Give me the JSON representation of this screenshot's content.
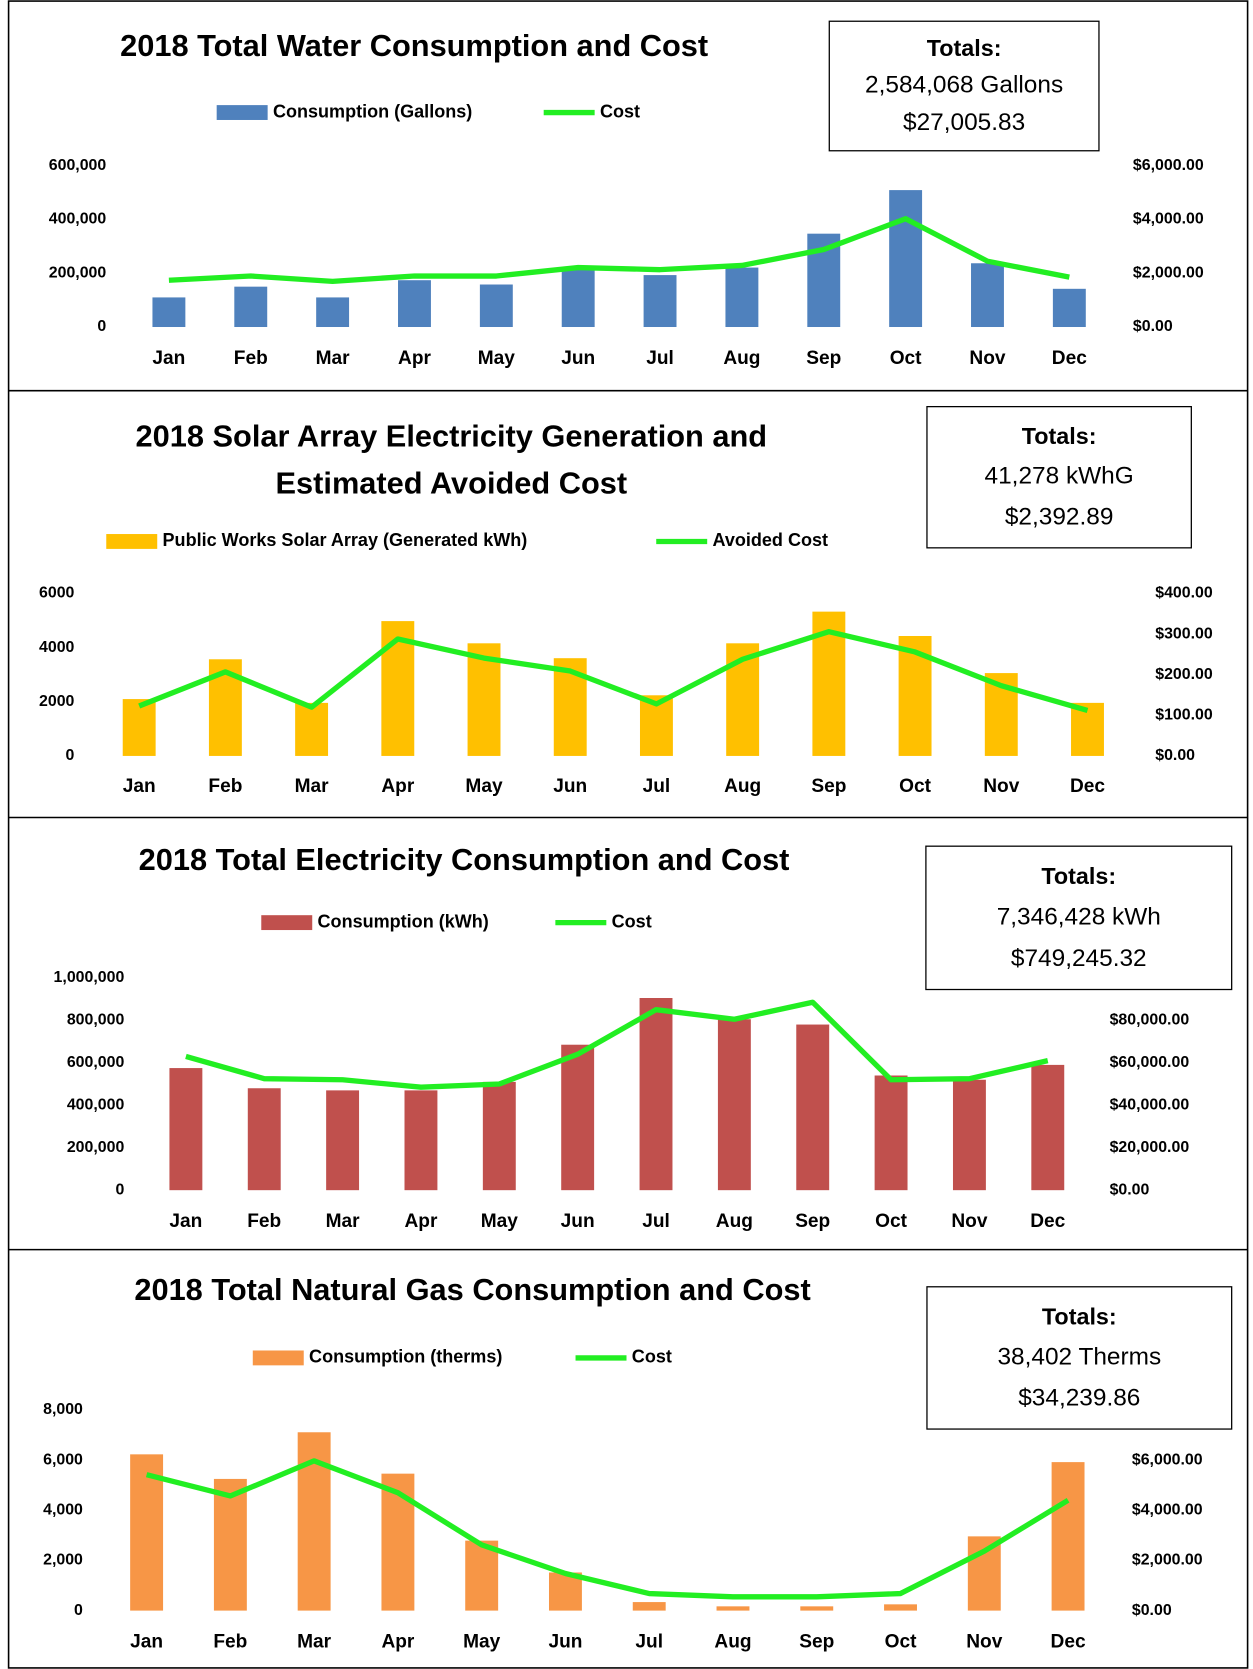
{
  "chart_data": [
    {
      "type": "combo",
      "title": [
        "2018 Total Water Consumption and Cost"
      ],
      "categories": [
        "Jan",
        "Feb",
        "Mar",
        "Apr",
        "May",
        "Jun",
        "Jul",
        "Aug",
        "Sep",
        "Oct",
        "Nov",
        "Dec"
      ],
      "series": [
        {
          "name": "Consumption (Gallons)",
          "color": "#4f81bd",
          "values": [
            110000,
            150000,
            110000,
            174000,
            158000,
            213000,
            193000,
            221000,
            347000,
            509000,
            237000,
            142000
          ]
        },
        {
          "name": "Cost",
          "color": "#22ee22",
          "axis": "y2",
          "values": [
            1737,
            1895,
            1697,
            1895,
            1895,
            2210,
            2132,
            2289,
            2882,
            4026,
            2447,
            1855
          ]
        }
      ],
      "ylim": [
        0,
        600000
      ],
      "yticks": [
        0,
        {
          "value": 200000,
          "label": "200,000"
        },
        {
          "value": 400000,
          "label": "400,000"
        },
        {
          "value": 600000,
          "label": "600,000"
        }
      ],
      "y2lim": [
        0,
        6000
      ],
      "y2ticks": [
        {
          "value": 0,
          "label": "$0.00"
        },
        {
          "value": 2000,
          "label": "$2,000.00"
        },
        {
          "value": 4000,
          "label": "$4,000.00"
        },
        {
          "value": 6000,
          "label": "$6,000.00"
        }
      ],
      "totals": {
        "heading": "Totals:",
        "lines": [
          "2,584,068 Gallons",
          "$27,005.83"
        ]
      }
    },
    {
      "type": "combo",
      "title": [
        "2018 Solar Array Electricity Generation and",
        "Estimated Avoided Cost"
      ],
      "categories": [
        "Jan",
        "Feb",
        "Mar",
        "Apr",
        "May",
        "Jun",
        "Jul",
        "Aug",
        "Sep",
        "Oct",
        "Nov",
        "Dec"
      ],
      "series": [
        {
          "name": "Public Works Solar Array (Generated kWh)",
          "color": "#ffc000",
          "values": [
            2100,
            3570,
            1960,
            4980,
            4160,
            3610,
            2240,
            4160,
            5330,
            4430,
            3060,
            1960
          ]
        },
        {
          "name": "Avoided Cost",
          "color": "#22ee22",
          "axis": "y2",
          "values": [
            123,
            207,
            120,
            288,
            241,
            209,
            128,
            238,
            306,
            256,
            173,
            112
          ]
        }
      ],
      "ylim": [
        0,
        6000
      ],
      "yticks": [
        0,
        2000,
        4000,
        6000
      ],
      "y2lim": [
        0,
        400
      ],
      "y2ticks": [
        {
          "value": 0,
          "label": "$0.00"
        },
        {
          "value": 100,
          "label": "$100.00"
        },
        {
          "value": 200,
          "label": "$200.00"
        },
        {
          "value": 300,
          "label": "$300.00"
        },
        {
          "value": 400,
          "label": "$400.00"
        }
      ],
      "totals": {
        "heading": "Totals:",
        "lines": [
          "41,278 kWhG",
          "$2,392.89"
        ]
      }
    },
    {
      "type": "combo",
      "title": [
        "2018 Total Electricity Consumption and Cost"
      ],
      "categories": [
        "Jan",
        "Feb",
        "Mar",
        "Apr",
        "May",
        "Jun",
        "Jul",
        "Aug",
        "Sep",
        "Oct",
        "Nov",
        "Dec"
      ],
      "series": [
        {
          "name": "Consumption (kWh)",
          "color": "#c0504d",
          "values": [
            575000,
            480000,
            470000,
            470000,
            510000,
            685000,
            905000,
            805000,
            780000,
            540000,
            520000,
            590000
          ]
        },
        {
          "name": "Cost",
          "color": "#22ee22",
          "axis": "y2",
          "values": [
            63000,
            52500,
            52000,
            48500,
            50000,
            64000,
            85000,
            80500,
            88500,
            52000,
            52500,
            61000
          ]
        }
      ],
      "ylim": [
        0,
        1000000
      ],
      "yticks": [
        0,
        {
          "value": 200000,
          "label": "200,000"
        },
        {
          "value": 400000,
          "label": "400,000"
        },
        {
          "value": 600000,
          "label": "600,000"
        },
        {
          "value": 800000,
          "label": "800,000"
        },
        {
          "value": 1000000,
          "label": "1,000,000"
        }
      ],
      "y2lim": [
        0,
        100000
      ],
      "y2ticks": [
        {
          "value": 0,
          "label": "$0.00"
        },
        {
          "value": 20000,
          "label": "$20,000.00"
        },
        {
          "value": 40000,
          "label": "$40,000.00"
        },
        {
          "value": 60000,
          "label": "$60,000.00"
        },
        {
          "value": 80000,
          "label": "$80,000.00"
        }
      ],
      "totals": {
        "heading": "Totals:",
        "lines": [
          "7,346,428 kWh",
          "$749,245.32"
        ]
      }
    },
    {
      "type": "combo",
      "title": [
        "2018 Total Natural Gas Consumption and Cost"
      ],
      "categories": [
        "Jan",
        "Feb",
        "Mar",
        "Apr",
        "May",
        "Jun",
        "Jul",
        "Aug",
        "Sep",
        "Oct",
        "Nov",
        "Dec"
      ],
      "series": [
        {
          "name": "Consumption (therms)",
          "color": "#f79646",
          "values": [
            6230,
            5250,
            7110,
            5460,
            2790,
            1520,
            340,
            170,
            170,
            250,
            2960,
            5920
          ]
        },
        {
          "name": "Cost",
          "color": "#22ee22",
          "axis": "y2",
          "values": [
            5420,
            4570,
            5970,
            4700,
            2620,
            1480,
            680,
            550,
            550,
            680,
            2370,
            4400
          ]
        }
      ],
      "ylim": [
        0,
        8000
      ],
      "yticks": [
        0,
        {
          "value": 2000,
          "label": "2,000"
        },
        {
          "value": 4000,
          "label": "4,000"
        },
        {
          "value": 6000,
          "label": "6,000"
        },
        {
          "value": 8000,
          "label": "8,000"
        }
      ],
      "y2lim": [
        0,
        8000
      ],
      "y2ticks": [
        {
          "value": 0,
          "label": "$0.00"
        },
        {
          "value": 2000,
          "label": "$2,000.00"
        },
        {
          "value": 4000,
          "label": "$4,000.00"
        },
        {
          "value": 6000,
          "label": "$6,000.00"
        }
      ],
      "totals": {
        "heading": "Totals:",
        "lines": [
          "38,402 Therms",
          "$34,239.86"
        ]
      }
    }
  ]
}
